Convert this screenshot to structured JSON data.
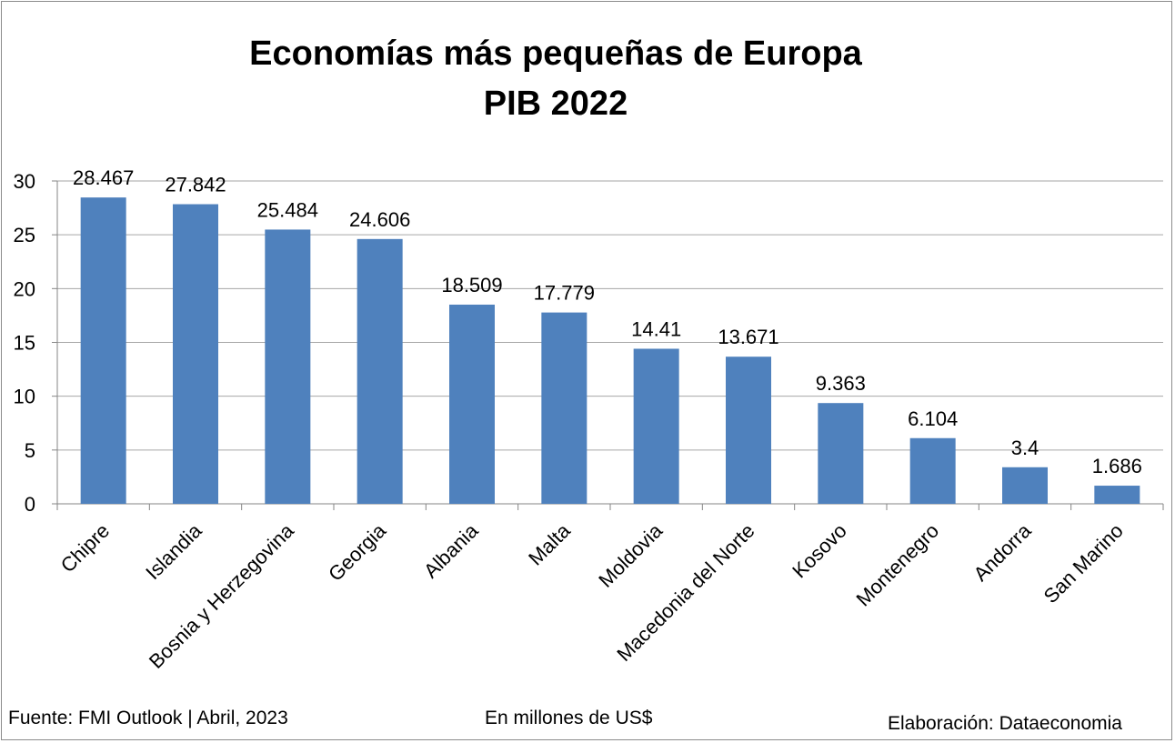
{
  "chart_data": {
    "type": "bar",
    "title": "Economías más pequeñas de Europa",
    "subtitle": "PIB 2022",
    "categories": [
      "Chipre",
      "Islandia",
      "Bosnia y Herzegovina",
      "Georgia",
      "Albania",
      "Malta",
      "Moldovia",
      "Macedonia del Norte",
      "Kosovo",
      "Montenegro",
      "Andorra",
      "San Marino"
    ],
    "values": [
      28.467,
      27.842,
      25.484,
      24.606,
      18.509,
      17.779,
      14.41,
      13.671,
      9.363,
      6.104,
      3.4,
      1.686
    ],
    "data_labels": [
      "28.467",
      "27.842",
      "25.484",
      "24.606",
      "18.509",
      "17.779",
      "14.41",
      "13.671",
      "9.363",
      "6.104",
      "3.4",
      "1.686"
    ],
    "ylim": [
      0,
      30
    ],
    "yticks": [
      0,
      5,
      10,
      15,
      20,
      25,
      30
    ],
    "grid": true,
    "bar_color": "#4f81bd",
    "gridline_color": "#a6a6a6"
  },
  "footer": {
    "source": "Fuente: FMI Outlook | Abril, 2023",
    "units": "En millones de US$",
    "credit": "Elaboración: Dataeconomia"
  }
}
